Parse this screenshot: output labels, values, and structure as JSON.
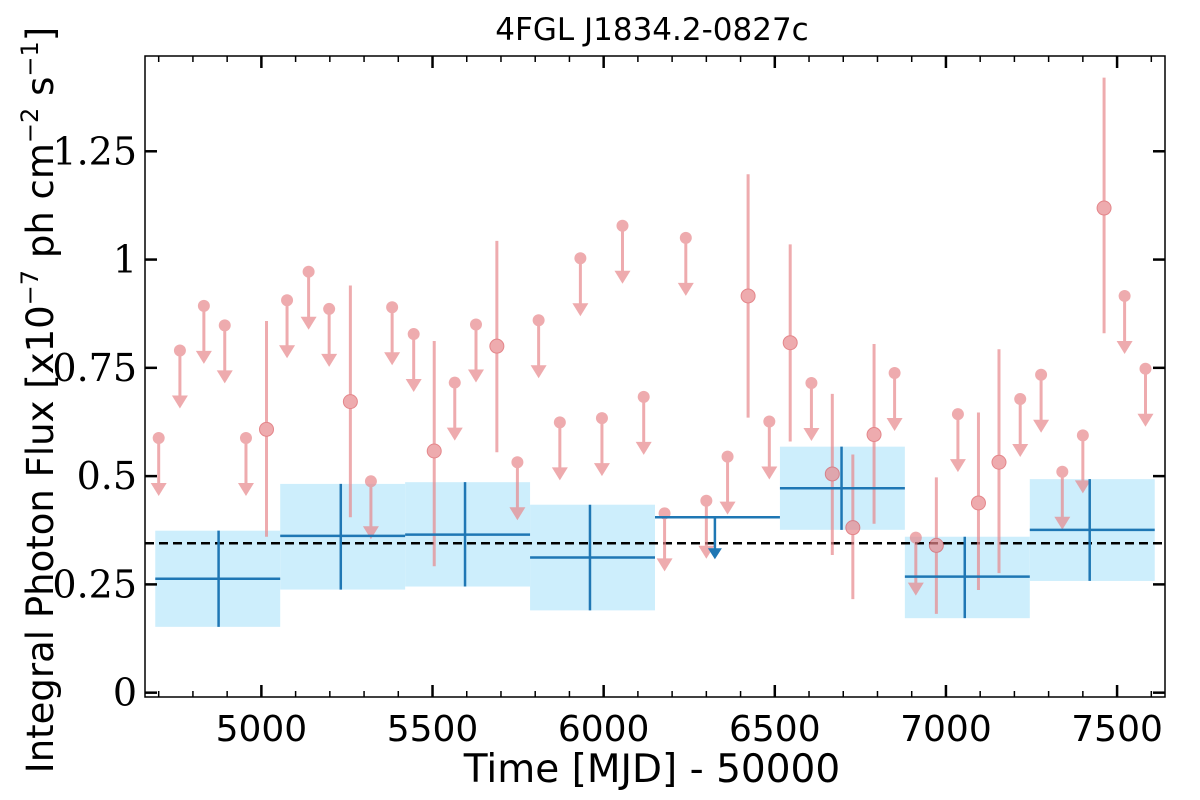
{
  "chart_data": {
    "type": "scatter",
    "title": "4FGL J1834.2-0827c",
    "xlabel": "Time [MJD] - 50000",
    "ylabel": "Integral Photon Flux [x10",
    "ylabel_exp1": "−7",
    "ylabel_mid": " ph cm",
    "ylabel_exp2": "−2",
    "ylabel_mid2": " s",
    "ylabel_exp3": "−1",
    "ylabel_end": "]",
    "xlim": [
      4660,
      7640
    ],
    "ylim": [
      -0.01,
      1.47
    ],
    "x_ticks": [
      5000,
      5500,
      6000,
      6500,
      7000,
      7500
    ],
    "x_tick_labels": [
      "5000",
      "5500",
      "6000",
      "6500",
      "7000",
      "7500"
    ],
    "y_ticks": [
      0,
      0.25,
      0.5,
      0.75,
      1,
      1.25
    ],
    "y_tick_labels": [
      "0",
      "0.25",
      "0.5",
      "0.75",
      "1",
      "1.25"
    ],
    "reference_line": {
      "y": 0.345,
      "style": "dashed",
      "color": "#000000"
    },
    "colors": {
      "long_bins": "#1f77b4",
      "long_band": "#cdeefc",
      "short_bins": "#e8888c"
    },
    "series": [
      {
        "bins": [
          {
            "x0": 4690,
            "x1": 5055,
            "y": 0.263,
            "ylo": 0.152,
            "yhi": 0.374,
            "xc": 4875
          },
          {
            "x0": 5055,
            "x1": 5420,
            "y": 0.362,
            "ylo": 0.238,
            "yhi": 0.482,
            "xc": 5232
          },
          {
            "x0": 5420,
            "x1": 5785,
            "y": 0.365,
            "ylo": 0.245,
            "yhi": 0.486,
            "xc": 5595
          },
          {
            "x0": 5785,
            "x1": 6150,
            "y": 0.312,
            "ylo": 0.19,
            "yhi": 0.434,
            "xc": 5960
          },
          {
            "x0": 6150,
            "x1": 6515,
            "y": 0.405,
            "ul": true,
            "xc": 6325
          },
          {
            "x0": 6515,
            "x1": 6880,
            "y": 0.472,
            "ylo": 0.376,
            "yhi": 0.568,
            "xc": 6695
          },
          {
            "x0": 6880,
            "x1": 7245,
            "y": 0.268,
            "ylo": 0.172,
            "yhi": 0.36,
            "xc": 7055
          },
          {
            "x0": 7245,
            "x1": 7610,
            "y": 0.376,
            "ylo": 0.258,
            "yhi": 0.493,
            "xc": 7420
          }
        ]
      },
      {
        "points": [
          {
            "x": 4700,
            "y": 0.588,
            "ul": true
          },
          {
            "x": 4762,
            "y": 0.79,
            "ul": true
          },
          {
            "x": 4832,
            "y": 0.893,
            "ul": true
          },
          {
            "x": 4893,
            "y": 0.848,
            "ul": true
          },
          {
            "x": 4955,
            "y": 0.588,
            "ul": true
          },
          {
            "x": 5015,
            "y": 0.608,
            "ylo": 0.36,
            "yhi": 0.858
          },
          {
            "x": 5075,
            "y": 0.906,
            "ul": true
          },
          {
            "x": 5138,
            "y": 0.972,
            "ul": true
          },
          {
            "x": 5198,
            "y": 0.886,
            "ul": true
          },
          {
            "x": 5260,
            "y": 0.672,
            "ylo": 0.405,
            "yhi": 0.94
          },
          {
            "x": 5320,
            "y": 0.488,
            "ul": true
          },
          {
            "x": 5382,
            "y": 0.89,
            "ul": true
          },
          {
            "x": 5445,
            "y": 0.828,
            "ul": true
          },
          {
            "x": 5505,
            "y": 0.558,
            "ylo": 0.292,
            "yhi": 0.812
          },
          {
            "x": 5565,
            "y": 0.716,
            "ul": true
          },
          {
            "x": 5627,
            "y": 0.85,
            "ul": true
          },
          {
            "x": 5688,
            "y": 0.8,
            "ylo": 0.555,
            "yhi": 1.043
          },
          {
            "x": 5748,
            "y": 0.532,
            "ul": true
          },
          {
            "x": 5810,
            "y": 0.86,
            "ul": true
          },
          {
            "x": 5872,
            "y": 0.624,
            "ul": true
          },
          {
            "x": 5932,
            "y": 1.003,
            "ul": true
          },
          {
            "x": 5995,
            "y": 0.634,
            "ul": true
          },
          {
            "x": 6055,
            "y": 1.078,
            "ul": true
          },
          {
            "x": 6117,
            "y": 0.683,
            "ul": true
          },
          {
            "x": 6178,
            "y": 0.414,
            "ul": true
          },
          {
            "x": 6240,
            "y": 1.05,
            "ul": true
          },
          {
            "x": 6300,
            "y": 0.443,
            "ul": true
          },
          {
            "x": 6362,
            "y": 0.545,
            "ul": true
          },
          {
            "x": 6422,
            "y": 0.916,
            "ylo": 0.635,
            "yhi": 1.197
          },
          {
            "x": 6484,
            "y": 0.626,
            "ul": true
          },
          {
            "x": 6545,
            "y": 0.808,
            "ylo": 0.58,
            "yhi": 1.035
          },
          {
            "x": 6607,
            "y": 0.715,
            "ul": true
          },
          {
            "x": 6668,
            "y": 0.505,
            "ylo": 0.318,
            "yhi": 0.69
          },
          {
            "x": 6728,
            "y": 0.381,
            "ylo": 0.216,
            "yhi": 0.55
          },
          {
            "x": 6790,
            "y": 0.596,
            "ylo": 0.39,
            "yhi": 0.805
          },
          {
            "x": 6850,
            "y": 0.738,
            "ul": true
          },
          {
            "x": 6912,
            "y": 0.358,
            "ul": true
          },
          {
            "x": 6972,
            "y": 0.34,
            "ylo": 0.182,
            "yhi": 0.497
          },
          {
            "x": 7035,
            "y": 0.643,
            "ul": true
          },
          {
            "x": 7095,
            "y": 0.438,
            "ylo": 0.237,
            "yhi": 0.647
          },
          {
            "x": 7155,
            "y": 0.532,
            "ylo": 0.276,
            "yhi": 0.793
          },
          {
            "x": 7217,
            "y": 0.678,
            "ul": true
          },
          {
            "x": 7278,
            "y": 0.734,
            "ul": true
          },
          {
            "x": 7340,
            "y": 0.51,
            "ul": true
          },
          {
            "x": 7400,
            "y": 0.594,
            "ul": true
          },
          {
            "x": 7462,
            "y": 1.119,
            "ylo": 0.83,
            "yhi": 1.42
          },
          {
            "x": 7522,
            "y": 0.916,
            "ul": true
          },
          {
            "x": 7583,
            "y": 0.748,
            "ul": true
          }
        ]
      }
    ],
    "grid": false,
    "legend": "none"
  }
}
